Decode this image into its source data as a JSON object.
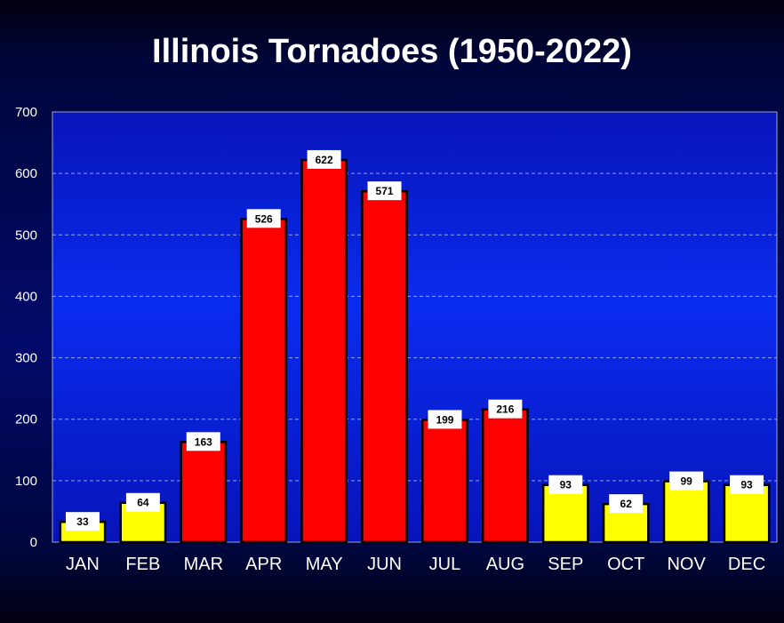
{
  "chart_data": {
    "type": "bar",
    "title": "Illinois Tornadoes (1950-2022)",
    "xlabel": "",
    "ylabel": "",
    "categories": [
      "JAN",
      "FEB",
      "MAR",
      "APR",
      "MAY",
      "JUN",
      "JUL",
      "AUG",
      "SEP",
      "OCT",
      "NOV",
      "DEC"
    ],
    "values": [
      33,
      64,
      163,
      526,
      622,
      571,
      199,
      216,
      93,
      62,
      99,
      93
    ],
    "ylim": [
      0,
      700
    ],
    "yticks": [
      "0",
      "100",
      "200",
      "300",
      "400",
      "500",
      "600",
      "700"
    ],
    "grid": true,
    "legend": "none",
    "bar_colors": [
      "#ffff00",
      "#ffff00",
      "#ff0000",
      "#ff0000",
      "#ff0000",
      "#ff0000",
      "#ff0000",
      "#ff0000",
      "#ffff00",
      "#ffff00",
      "#ffff00",
      "#ffff00"
    ],
    "plot_background_colors": [
      "#0a2cf0",
      "#0714b8"
    ]
  }
}
